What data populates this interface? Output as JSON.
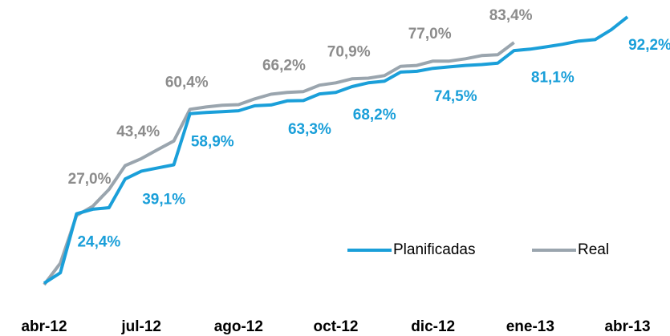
{
  "chart_data": {
    "type": "line",
    "categories": [
      "abr-12",
      null,
      null,
      null,
      null,
      null,
      "jul-12",
      null,
      null,
      null,
      null,
      null,
      "ago-12",
      null,
      null,
      null,
      null,
      null,
      "oct-12",
      null,
      null,
      null,
      null,
      null,
      "dic-12",
      null,
      null,
      null,
      null,
      null,
      "ene-13",
      null,
      null,
      null,
      null,
      null,
      "abr-13"
    ],
    "ylim": [
      0,
      95
    ],
    "legend": "lower right",
    "series": [
      {
        "name": "Planificadas",
        "color": "#1a9fd9",
        "values": [
          0.5,
          4.1,
          24.4,
          26.0,
          26.5,
          36.4,
          39.1,
          40.2,
          41.3,
          58.9,
          59.3,
          59.6,
          59.9,
          61.6,
          61.9,
          63.3,
          63.4,
          65.7,
          66.2,
          68.2,
          69.5,
          70.1,
          73.2,
          73.5,
          74.5,
          75.0,
          75.5,
          75.8,
          76.3,
          80.6,
          81.1,
          81.9,
          82.8,
          83.9,
          84.4,
          87.8,
          92.2
        ],
        "value_labels": [
          null,
          null,
          "24,4%",
          null,
          null,
          null,
          "39,1%",
          null,
          null,
          "58,9%",
          null,
          null,
          null,
          null,
          null,
          "63,3%",
          null,
          null,
          null,
          "68,2%",
          null,
          null,
          null,
          null,
          "74,5%",
          null,
          null,
          null,
          null,
          null,
          "81,1%",
          null,
          null,
          null,
          null,
          null,
          "92,2%"
        ]
      },
      {
        "name": "Real",
        "color": "#9aa5ae",
        "values": [
          0.0,
          7.4,
          23.8,
          27.0,
          32.8,
          41.0,
          43.4,
          46.5,
          49.5,
          60.4,
          61.2,
          61.8,
          62.0,
          64.0,
          65.6,
          66.2,
          66.5,
          68.7,
          69.5,
          70.9,
          71.1,
          72.0,
          75.2,
          75.5,
          77.0,
          77.0,
          77.8,
          78.9,
          79.2,
          83.4,
          null,
          null,
          null,
          null,
          null,
          null,
          null
        ],
        "value_labels": [
          null,
          null,
          null,
          "27,0%",
          null,
          null,
          "43,4%",
          null,
          null,
          "60,4%",
          null,
          null,
          null,
          null,
          null,
          "66,2%",
          null,
          null,
          null,
          "70,9%",
          null,
          null,
          null,
          null,
          "77,0%",
          null,
          null,
          null,
          null,
          "83,4%",
          null,
          null,
          null,
          null,
          null,
          null,
          null
        ]
      }
    ]
  }
}
